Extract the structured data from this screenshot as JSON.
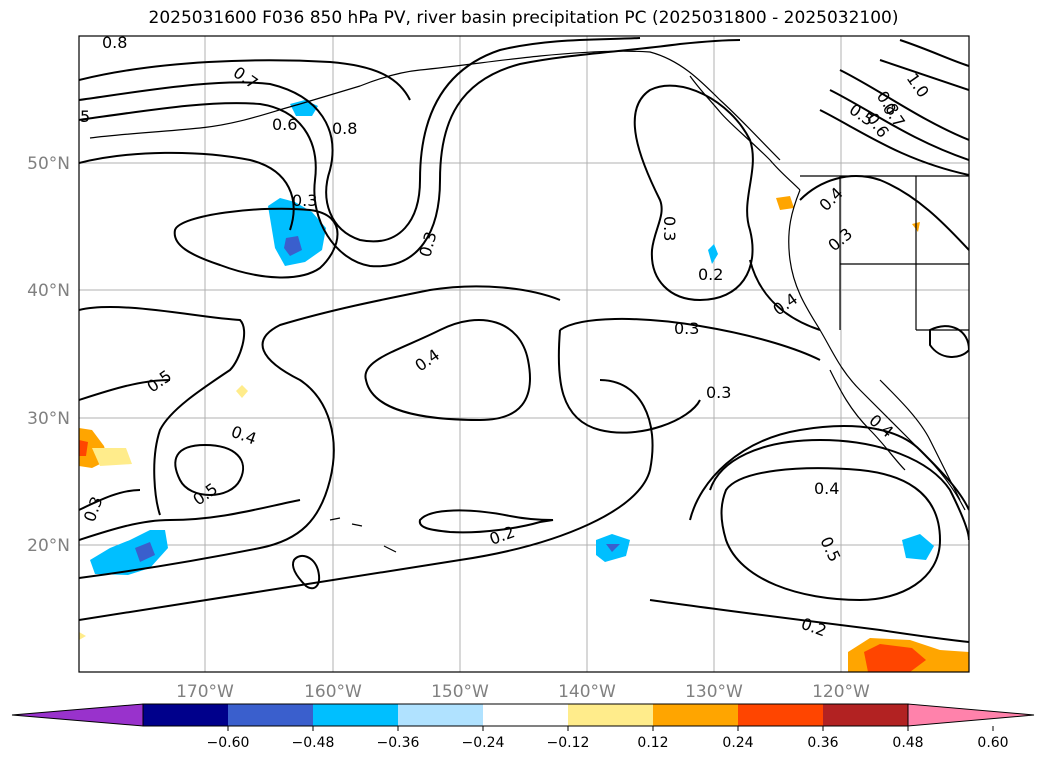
{
  "title": "2025031600 F036 850 hPa PV, river basin precipitation PC (2025031800 - 2025032100)",
  "lat_labels": [
    "50°N",
    "40°N",
    "30°N",
    "20°N"
  ],
  "lon_labels": [
    "170°W",
    "160°W",
    "150°W",
    "140°W",
    "130°W",
    "120°W"
  ],
  "contour_labels": [
    "0.8",
    "0.7",
    "0.6",
    "0.8",
    "5",
    "0.3",
    "0.3",
    "0.3",
    "0.2",
    "0.3",
    "0.4",
    "0.5",
    "0.4",
    "0.5",
    "0.3",
    "0.2",
    "0.3",
    "0.4",
    "0.5",
    "0.2",
    "0.4",
    "0.4",
    "0.3",
    "0.5",
    "0.6",
    "0.7",
    "0.8",
    "1.0",
    "0.4"
  ],
  "colorbar": {
    "ticks": [
      "−0.60",
      "−0.48",
      "−0.36",
      "−0.24",
      "−0.12",
      "0.12",
      "0.24",
      "0.36",
      "0.48",
      "0.60"
    ],
    "colors": [
      "#9932cc",
      "#00008b",
      "#3a5fcd",
      "#00bfff",
      "#b0e2ff",
      "#ffffff",
      "#ffec8b",
      "#ffa500",
      "#ff4500",
      "#b22222",
      "#ff82ab"
    ]
  }
}
